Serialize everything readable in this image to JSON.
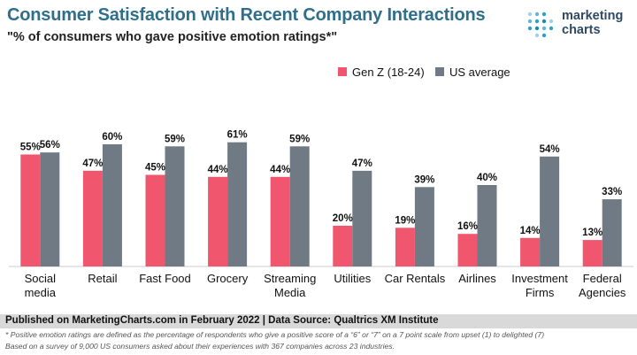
{
  "chart_data": {
    "type": "bar",
    "title": "Consumer Satisfaction with Recent Company Interactions",
    "subtitle": "\"% of consumers who gave positive emotion ratings*\"",
    "categories": [
      [
        "Social",
        "media"
      ],
      [
        "Retail"
      ],
      [
        "Fast Food"
      ],
      [
        "Grocery"
      ],
      [
        "Streaming",
        "Media"
      ],
      [
        "Utilities"
      ],
      [
        "Car Rentals"
      ],
      [
        "Airlines"
      ],
      [
        "Investment",
        "Firms"
      ],
      [
        "Federal",
        "Agencies"
      ]
    ],
    "series": [
      {
        "name": "Gen Z (18-24)",
        "color": "#f0566e",
        "values": [
          55,
          47,
          45,
          44,
          44,
          20,
          19,
          16,
          14,
          13
        ]
      },
      {
        "name": "US average",
        "color": "#6f7a85",
        "values": [
          56,
          60,
          59,
          61,
          59,
          47,
          39,
          40,
          54,
          33
        ]
      }
    ],
    "value_suffix": "%",
    "ylim": [
      0,
      70
    ],
    "grid": false,
    "legend_position": "top-right"
  },
  "logo": {
    "line1": "marketing",
    "line2": "charts"
  },
  "footer": {
    "source": "Published on MarketingCharts.com in February 2022 | Data Source: Qualtrics XM Institute",
    "note1": "* Positive emotion ratings are defined as the percentage of respondents who give a positive score of a “6” or “7” on a 7 point scale from upset (1) to delighted (7)",
    "note2": "Based on a survey of 9,000 US consumers asked about their experiences with 367 companies across 23 industries."
  }
}
